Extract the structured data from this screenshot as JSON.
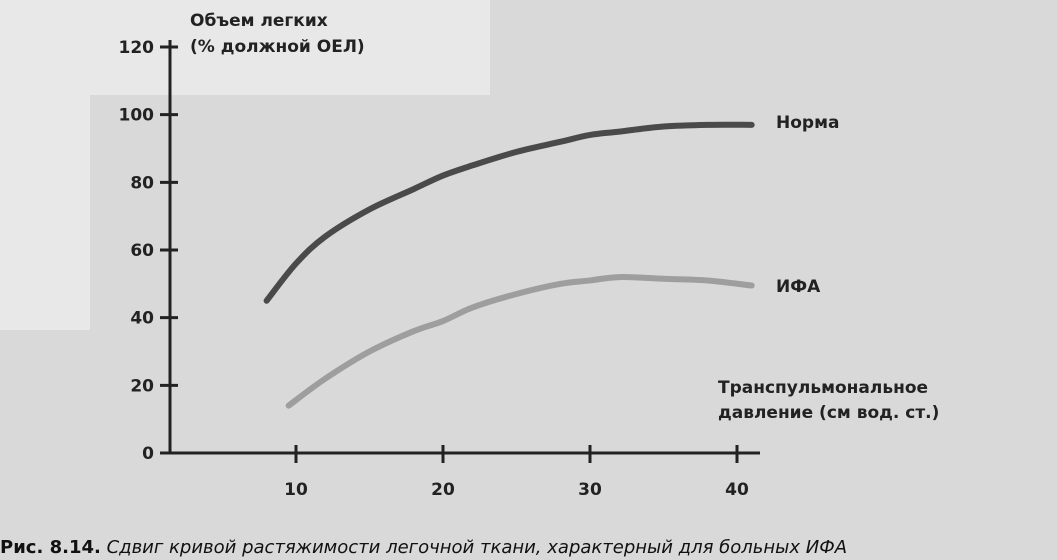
{
  "chart_data": {
    "type": "line",
    "title": "",
    "ylabel_line1": "Объем легких",
    "ylabel_line2": "(% должной ОЕЛ)",
    "xlabel_line1": "Транспульмональное",
    "xlabel_line2": "давление (см вод. ст.)",
    "xlim": [
      0,
      45
    ],
    "ylim": [
      0,
      125
    ],
    "xticks": [
      10,
      20,
      30,
      40
    ],
    "yticks": [
      0,
      20,
      40,
      60,
      80,
      100,
      120
    ],
    "grid": false,
    "series": [
      {
        "name": "Норма",
        "color": "#4a4a4a",
        "x": [
          8,
          10,
          12,
          15,
          18,
          20,
          22,
          25,
          28,
          30,
          32,
          35,
          38,
          41
        ],
        "y": [
          45,
          56,
          64,
          72,
          78,
          82,
          85,
          89,
          92,
          94,
          95,
          96.5,
          97,
          97
        ]
      },
      {
        "name": "ИФА",
        "color": "#9e9e9e",
        "x": [
          9.5,
          12,
          15,
          18,
          20,
          22,
          25,
          28,
          30,
          32,
          35,
          38,
          41
        ],
        "y": [
          14,
          22,
          30,
          36,
          39,
          43,
          47,
          50,
          51,
          52,
          51.5,
          51,
          49.5
        ]
      }
    ]
  },
  "caption": {
    "number": "Рис. 8.14.",
    "text": "Сдвиг кривой растяжимости легочной ткани, характерный для больных ИФА"
  }
}
